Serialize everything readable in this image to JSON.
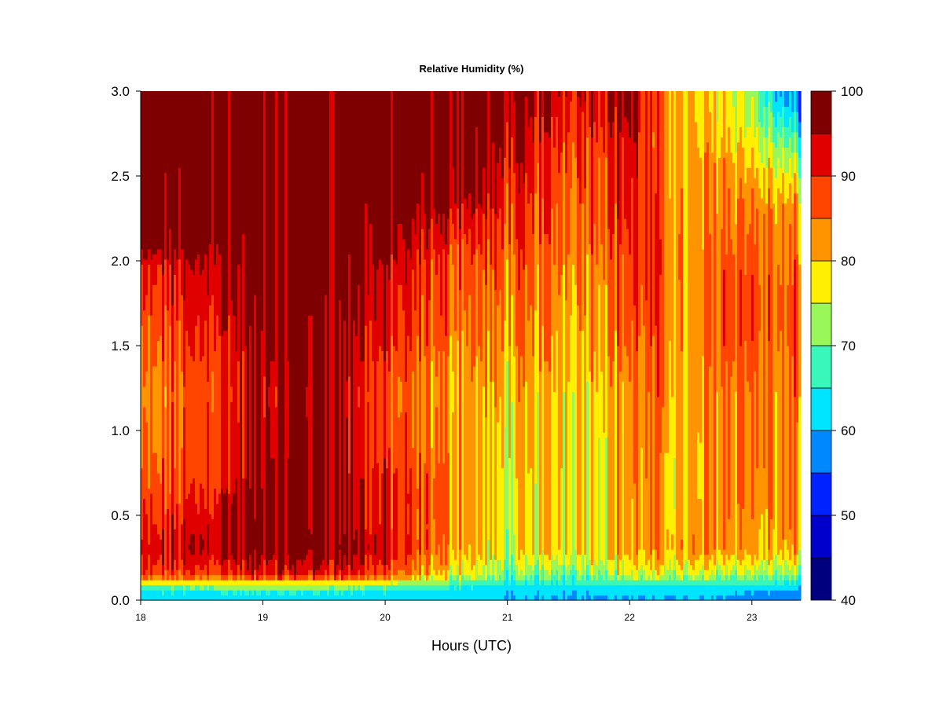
{
  "chart_data": {
    "type": "heatmap",
    "title": "Relative Humidity (%)",
    "xlabel": "Hours (UTC)",
    "ylabel": "",
    "xlim": [
      18,
      23.4
    ],
    "ylim": [
      0,
      3.0
    ],
    "xticks": [
      "18",
      "19",
      "20",
      "21",
      "22",
      "23"
    ],
    "yticks": [
      "0.0",
      "0.5",
      "1.0",
      "1.5",
      "2.0",
      "2.5",
      "3.0"
    ],
    "colorbar": {
      "ticks": [
        "40",
        "50",
        "60",
        "70",
        "80",
        "90",
        "100"
      ],
      "levels": [
        40,
        45,
        50,
        55,
        60,
        65,
        70,
        75,
        80,
        85,
        90,
        95,
        100
      ],
      "colors": [
        "#00007f",
        "#0000cc",
        "#0022ff",
        "#0088ff",
        "#00e5ff",
        "#39f7bb",
        "#99f75a",
        "#ffef00",
        "#ff9400",
        "#ff4500",
        "#e00000",
        "#7f0000"
      ]
    },
    "heights": [
      0.03,
      0.08,
      0.15,
      0.3,
      0.45,
      0.6,
      0.75,
      0.9,
      1.05,
      1.2,
      1.35,
      1.5,
      1.65,
      1.8,
      1.95,
      2.1,
      2.25,
      2.4,
      2.55,
      2.7,
      2.85,
      3.0
    ],
    "hours": [
      18.0,
      18.25,
      18.5,
      18.75,
      19.0,
      19.25,
      19.5,
      19.75,
      20.0,
      20.25,
      20.5,
      20.75,
      21.0,
      21.25,
      21.5,
      21.75,
      22.0,
      22.25,
      22.5,
      22.75,
      23.0,
      23.25,
      23.4
    ],
    "rh": [
      [
        62,
        62,
        62,
        62,
        62,
        62,
        62,
        62,
        62,
        61,
        61,
        61,
        60,
        60,
        60,
        60,
        60,
        60,
        60,
        60,
        59,
        58,
        57
      ],
      [
        70,
        70,
        71,
        72,
        72,
        72,
        72,
        71,
        70,
        68,
        66,
        65,
        62,
        62,
        62,
        63,
        64,
        64,
        63,
        63,
        62,
        62,
        61
      ],
      [
        86,
        88,
        88,
        89,
        91,
        91,
        92,
        91,
        87,
        82,
        78,
        76,
        70,
        70,
        72,
        74,
        75,
        75,
        74,
        74,
        73,
        71,
        70
      ],
      [
        91,
        93,
        95,
        97,
        98,
        98,
        99,
        97,
        93,
        87,
        84,
        80,
        75,
        78,
        80,
        80,
        82,
        82,
        82,
        84,
        82,
        80,
        80
      ],
      [
        88,
        90,
        93,
        97,
        98,
        98,
        98,
        95,
        90,
        86,
        85,
        82,
        76,
        78,
        80,
        80,
        82,
        82,
        80,
        85,
        82,
        82,
        82
      ],
      [
        86,
        88,
        90,
        95,
        97,
        98,
        98,
        95,
        90,
        87,
        85,
        82,
        76,
        78,
        80,
        80,
        82,
        82,
        78,
        85,
        84,
        82,
        83
      ],
      [
        85,
        86,
        88,
        92,
        96,
        98,
        97,
        93,
        90,
        86,
        85,
        82,
        76,
        79,
        80,
        80,
        83,
        82,
        78,
        85,
        84,
        82,
        84
      ],
      [
        82,
        85,
        88,
        92,
        95,
        97,
        97,
        93,
        88,
        85,
        84,
        82,
        77,
        80,
        80,
        80,
        83,
        83,
        78,
        85,
        85,
        82,
        84
      ],
      [
        82,
        85,
        88,
        92,
        95,
        97,
        97,
        93,
        88,
        85,
        84,
        82,
        78,
        80,
        80,
        81,
        83,
        83,
        78,
        86,
        85,
        82,
        84
      ],
      [
        80,
        84,
        88,
        90,
        94,
        96,
        97,
        92,
        87,
        84,
        82,
        82,
        79,
        80,
        80,
        81,
        84,
        84,
        78,
        86,
        85,
        82,
        85
      ],
      [
        82,
        85,
        88,
        91,
        95,
        97,
        98,
        93,
        88,
        85,
        83,
        83,
        80,
        81,
        81,
        82,
        85,
        85,
        79,
        87,
        86,
        83,
        86
      ],
      [
        83,
        87,
        90,
        93,
        96,
        98,
        98,
        95,
        90,
        86,
        85,
        84,
        82,
        82,
        82,
        83,
        86,
        86,
        80,
        88,
        87,
        84,
        87
      ],
      [
        85,
        88,
        91,
        94,
        97,
        98,
        98,
        96,
        91,
        88,
        86,
        85,
        83,
        83,
        83,
        84,
        87,
        87,
        80,
        88,
        88,
        85,
        87
      ],
      [
        87,
        90,
        93,
        96,
        98,
        99,
        99,
        97,
        92,
        89,
        87,
        86,
        84,
        84,
        84,
        85,
        88,
        87,
        80,
        88,
        88,
        85,
        86
      ],
      [
        88,
        91,
        94,
        97,
        99,
        99,
        99,
        98,
        94,
        90,
        88,
        87,
        85,
        85,
        85,
        86,
        89,
        88,
        80,
        88,
        87,
        84,
        85
      ],
      [
        97,
        97,
        98,
        98,
        99,
        99,
        99,
        99,
        97,
        92,
        90,
        89,
        87,
        86,
        86,
        87,
        90,
        88,
        80,
        87,
        86,
        83,
        83
      ],
      [
        98,
        98,
        98,
        99,
        99,
        99,
        99,
        99,
        98,
        95,
        94,
        92,
        88,
        87,
        87,
        88,
        91,
        87,
        80,
        86,
        85,
        82,
        81
      ],
      [
        98,
        98,
        99,
        99,
        99,
        99,
        99,
        99,
        99,
        98,
        97,
        96,
        90,
        88,
        88,
        89,
        92,
        86,
        80,
        85,
        83,
        80,
        79
      ],
      [
        98,
        99,
        99,
        99,
        99,
        99,
        99,
        99,
        99,
        99,
        98,
        98,
        92,
        90,
        89,
        90,
        93,
        85,
        79,
        84,
        80,
        75,
        72
      ],
      [
        99,
        99,
        99,
        99,
        99,
        99,
        99,
        99,
        99,
        99,
        99,
        98,
        94,
        91,
        90,
        91,
        94,
        84,
        79,
        82,
        77,
        70,
        66
      ],
      [
        99,
        99,
        99,
        99,
        99,
        99,
        99,
        99,
        99,
        99,
        99,
        99,
        96,
        93,
        92,
        93,
        96,
        84,
        78,
        80,
        74,
        64,
        58
      ],
      [
        99,
        99,
        99,
        99,
        99,
        99,
        99,
        99,
        99,
        99,
        99,
        99,
        97,
        95,
        94,
        95,
        97,
        84,
        78,
        79,
        72,
        58,
        55
      ]
    ]
  }
}
